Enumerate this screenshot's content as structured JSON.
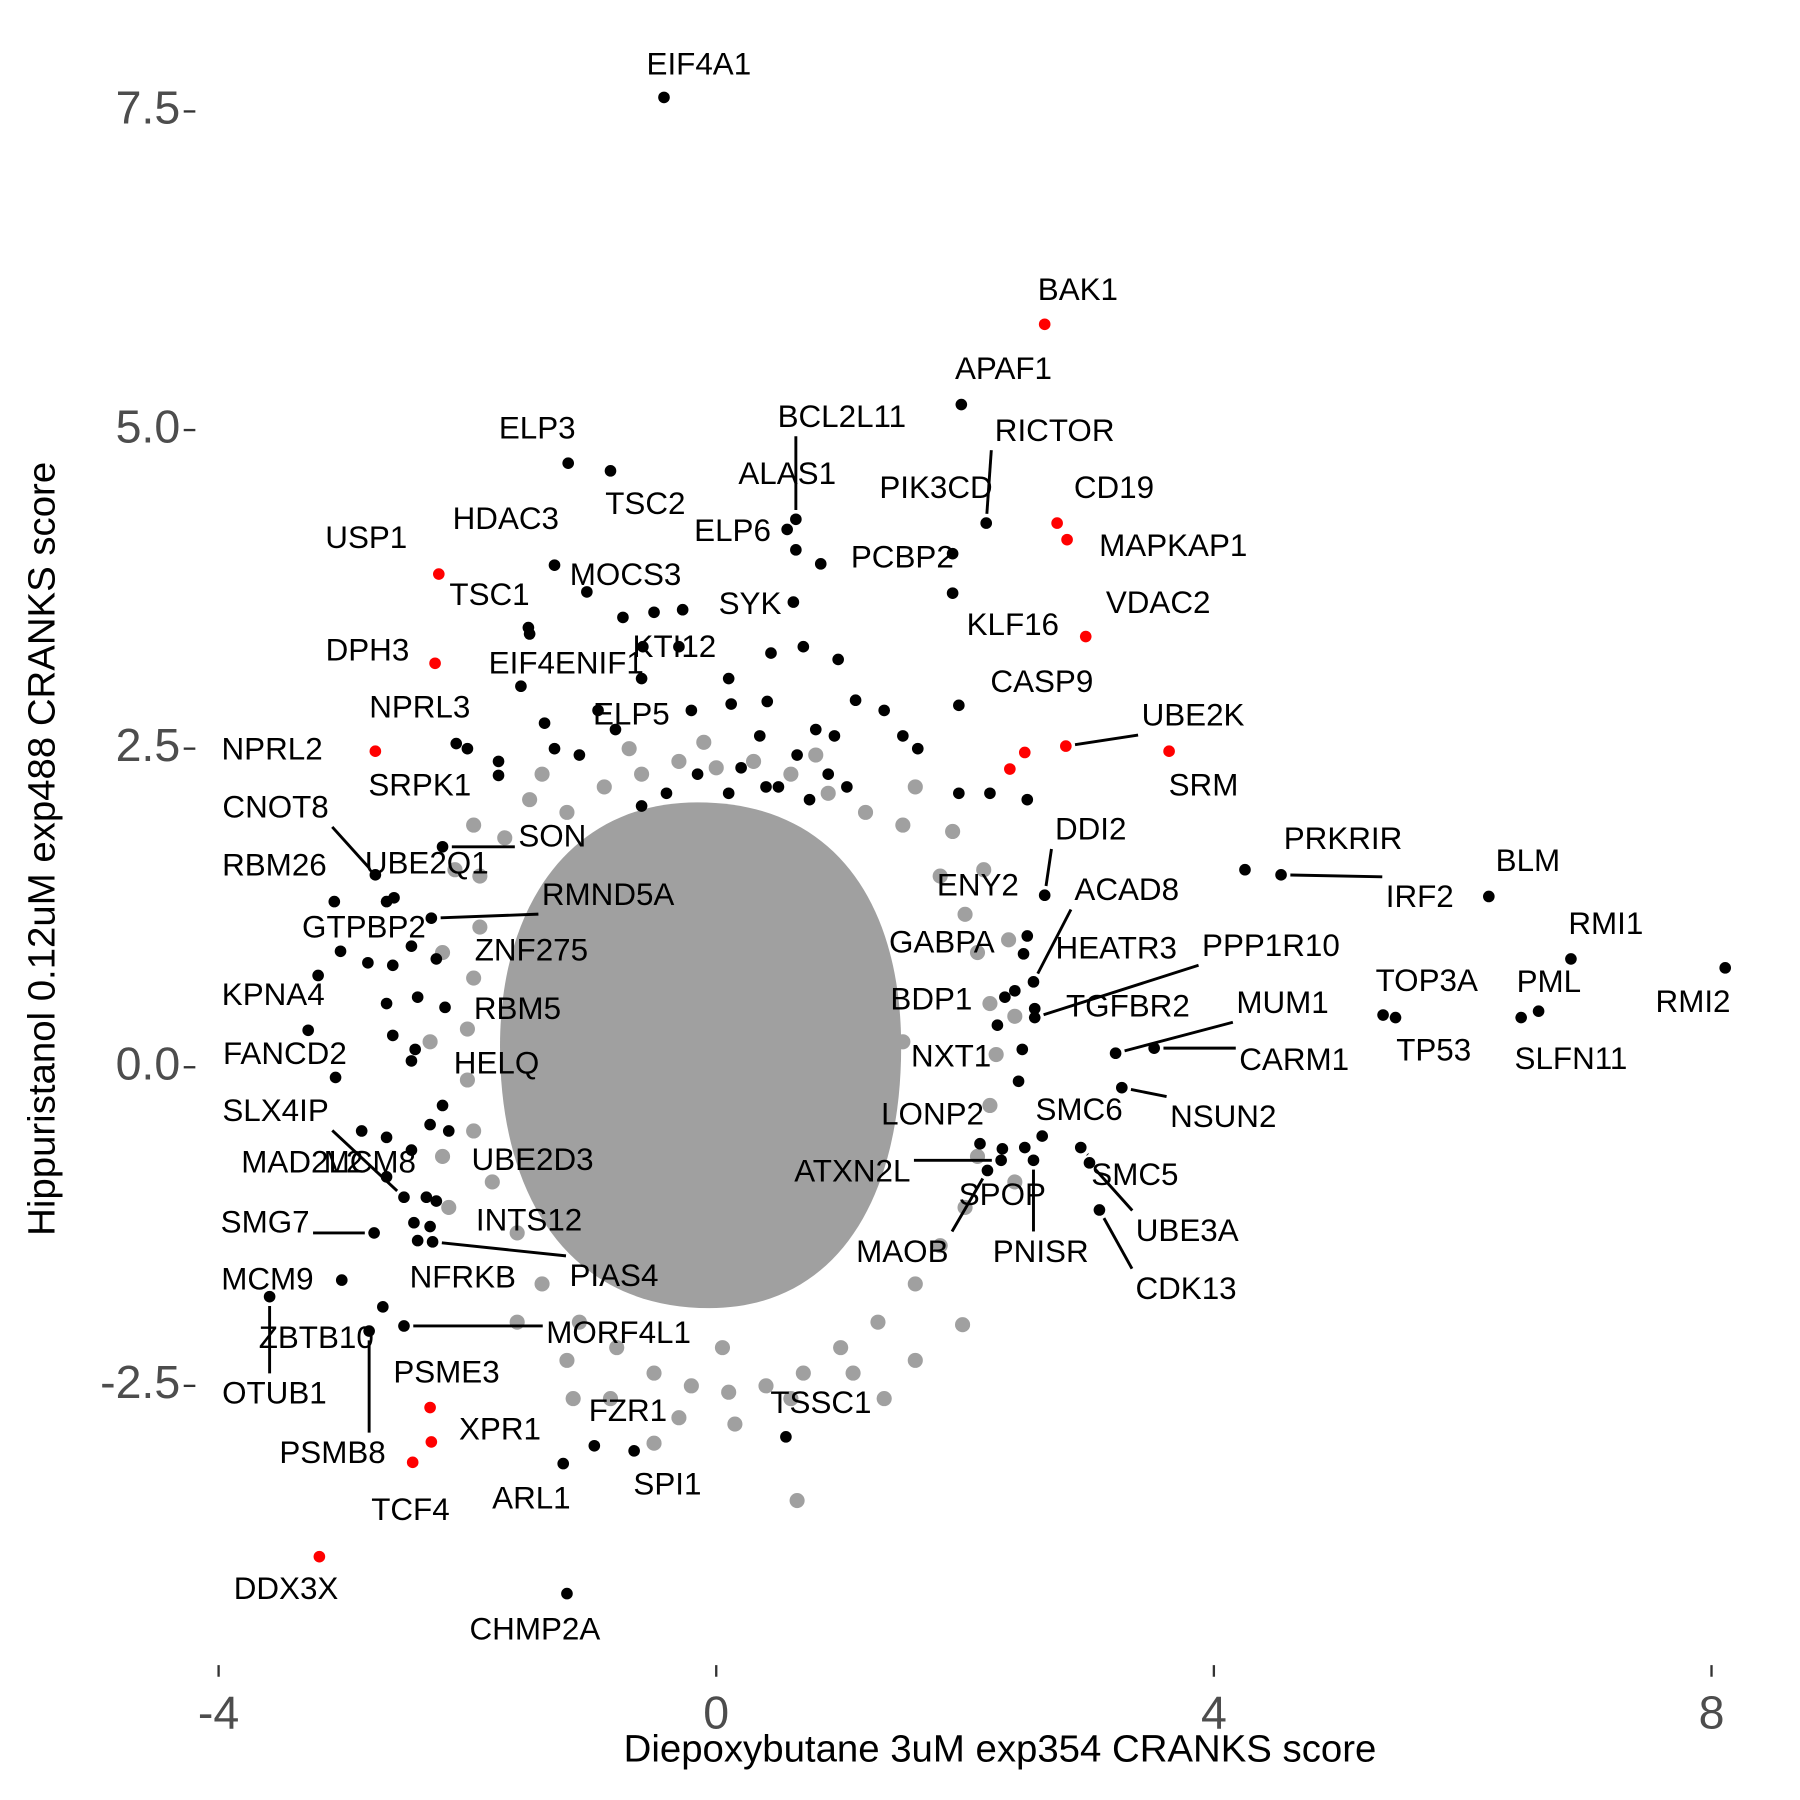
{
  "chart_data": {
    "type": "scatter",
    "x_label": "Diepoxybutane 3uM exp354 CRANKS score",
    "y_label": "Hippuristanol 0.12uM exp488 CRANKS score",
    "xlim": [
      -4.2,
      8.3
    ],
    "ylim": [
      -4.6,
      7.9
    ],
    "xticks": [
      -4,
      0,
      4,
      8
    ],
    "yticks": [
      -2.5,
      {
        "value": 0,
        "label": "0.0"
      },
      2.5,
      {
        "value": 5,
        "label": "5.0"
      },
      7.5
    ],
    "grid": false,
    "series": [
      {
        "color": "#a0a0a0",
        "x": [
          -1.9,
          -1.7,
          -1.5,
          -1.2,
          -0.9,
          -0.6,
          -0.3,
          0,
          0.3,
          0.6,
          0.9,
          1.2,
          1.5,
          1.8,
          2.0,
          2.1,
          2.2,
          2.25,
          2.2,
          2.1,
          2.0,
          1.8,
          1.6,
          1.3,
          1.0,
          0.7,
          0.4,
          0.1,
          -0.2,
          -0.5,
          -0.8,
          -1.1,
          -1.4,
          -1.6,
          -1.8,
          -1.95,
          -2.0,
          -2.0,
          -1.95,
          -1.9,
          -2.2,
          -2.3,
          -2.2,
          -2.15,
          -1.6,
          -1.2,
          -0.85,
          -0.3,
          0.15,
          0.6,
          1.1,
          1.6,
          1.98,
          2.4,
          2.4,
          2.35,
          2.15,
          1.9,
          1.6,
          0.8,
          -0.1,
          -0.7,
          -1.4,
          -1.95,
          -2.1,
          0.65,
          -1.15,
          -0.5,
          0.05,
          1.35,
          1.0,
          -1.0,
          0.5,
          -0.5,
          1.5,
          -1.5,
          0.2,
          -0.2,
          1.2,
          -1.2
        ],
        "values": [
          1.5,
          1.8,
          2.1,
          2.0,
          2.2,
          2.3,
          2.4,
          2.35,
          2.4,
          2.3,
          2.15,
          2.0,
          1.9,
          1.5,
          1.2,
          0.9,
          0.5,
          0.1,
          -0.3,
          -0.7,
          -1.1,
          -1.4,
          -1.7,
          -2.0,
          -2.2,
          -2.4,
          -2.5,
          -2.55,
          -2.5,
          -2.4,
          -2.2,
          -2.0,
          -1.7,
          -1.3,
          -0.9,
          -0.5,
          -0.1,
          0.3,
          0.7,
          1.1,
          0.9,
          0.2,
          -0.7,
          -1.1,
          -2.0,
          -2.3,
          -2.6,
          -2.75,
          -2.8,
          -2.6,
          -2.4,
          -2.3,
          -2.02,
          -0.9,
          0.4,
          1.0,
          1.55,
          1.85,
          2.2,
          2.45,
          2.55,
          2.5,
          2.3,
          1.9,
          1.55,
          -3.4,
          -2.6,
          -2.95,
          -2.2,
          -2.6,
          -1.0,
          1.0,
          0.5,
          -0.5,
          0.2,
          -0.2,
          1.6,
          -1.7,
          1.2,
          -1.2
        ]
      },
      {
        "color": "#000000",
        "x": [
          -0.42,
          1.97,
          -1.19,
          -0.85,
          0.64,
          0.57,
          2.17,
          1.9,
          -1.3,
          -1.51,
          -1.04,
          0.64,
          0.84,
          0.62,
          1.9,
          -1.57,
          -0.59,
          -0.81,
          1.95,
          -2.09,
          -1.75,
          -2.74,
          -2.2,
          -2.59,
          -3.07,
          -2.29,
          -3.02,
          -2.25,
          -3.2,
          -2.18,
          -3.28,
          -2.42,
          -2.51,
          -3.06,
          -2.65,
          -2.33,
          -2.75,
          -2.43,
          -2.4,
          -2.28,
          -3.01,
          -2.51,
          -3.59,
          -2.68,
          -2.79,
          -0.98,
          -0.66,
          -1.23,
          0.56,
          -1.2,
          2.64,
          2.5,
          2.55,
          2.47,
          2.56,
          2.56,
          2.32,
          2.26,
          2.46,
          3.21,
          3.52,
          3.26,
          2.43,
          2.62,
          2.93,
          2.29,
          2.48,
          2.18,
          2.55,
          3.0,
          3.08,
          4.25,
          4.54,
          6.21,
          6.87,
          8.11,
          5.36,
          5.46,
          6.61,
          6.47,
          -0.27,
          -0.5,
          -0.75,
          0.44,
          0.7,
          0.98,
          -0.3,
          0.1,
          -0.6,
          -0.2,
          0.12,
          0.41,
          1.12,
          1.35,
          0.8,
          0.35,
          0.95,
          1.5,
          1.62,
          0.65,
          0.2,
          -0.15,
          0.5,
          0.9,
          1.05,
          0.4,
          -0.4,
          -0.6,
          0.1,
          0.75,
          1.95,
          2.2,
          2.5,
          -1.38,
          -1.1,
          -1.3,
          -1.5,
          -0.95,
          -2.0,
          -1.75,
          -2.65,
          -2.45,
          -2.8,
          -2.6,
          -2.4,
          -2.65,
          -2.6,
          -2.45,
          -2.2,
          -2.3,
          -2.65,
          -2.85,
          -2.45,
          -2.15,
          -2.25,
          -2.3,
          2.4,
          2.12,
          2.3
        ],
        "values": [
          7.61,
          5.2,
          4.74,
          4.68,
          4.3,
          4.22,
          4.27,
          4.03,
          3.94,
          3.45,
          3.73,
          4.06,
          3.95,
          3.65,
          3.72,
          2.99,
          3.3,
          2.65,
          2.84,
          2.54,
          2.29,
          1.51,
          1.73,
          1.33,
          1.3,
          1.17,
          0.91,
          0.85,
          0.72,
          0.47,
          0.29,
          0.14,
          -1.02,
          -0.08,
          -0.86,
          -1.02,
          -1.3,
          -1.22,
          -1.36,
          -1.37,
          -1.67,
          -2.03,
          -1.8,
          -1.88,
          -2.07,
          -2.97,
          -3.01,
          -3.11,
          -2.9,
          -4.13,
          1.35,
          1.03,
          0.67,
          0.89,
          0.46,
          0.39,
          0.55,
          0.33,
          0.14,
          0.11,
          0.15,
          -0.16,
          -0.11,
          -0.54,
          -0.63,
          -0.73,
          -0.63,
          -0.81,
          -0.73,
          -0.75,
          -1.12,
          1.55,
          1.51,
          1.34,
          0.85,
          0.78,
          0.41,
          0.39,
          0.44,
          0.39,
          3.59,
          3.57,
          3.53,
          3.25,
          3.3,
          3.2,
          3.3,
          3.05,
          3.05,
          2.8,
          2.85,
          2.87,
          2.88,
          2.8,
          2.65,
          2.6,
          2.6,
          2.6,
          2.5,
          2.45,
          2.35,
          2.3,
          2.2,
          2.3,
          2.2,
          2.2,
          2.15,
          2.05,
          2.15,
          2.1,
          2.15,
          2.15,
          2.1,
          2.7,
          2.45,
          2.5,
          3.4,
          2.8,
          2.5,
          2.4,
          1.3,
          0.95,
          0.82,
          0.8,
          0.55,
          0.5,
          0.25,
          0.05,
          -0.3,
          -0.45,
          -0.55,
          -0.5,
          -0.65,
          -0.5,
          -1.05,
          -1.25,
          0.6,
          -0.6,
          -0.64
        ],
        "labels": [
          "EIF4A1",
          "APAF1",
          "ELP3",
          "TSC2",
          "BCL2L11",
          "ALAS1",
          "RICTOR",
          "PIK3CD",
          "HDAC3",
          "TSC1",
          "MOCS3",
          "ELP6",
          "PCBP2",
          "SYK",
          "KLF16",
          "EIF4ENIF1",
          "KTI12",
          "ELP5",
          "CASP9",
          "NPRL3",
          "SRPK1",
          "CNOT8",
          "SON",
          "UBE2Q1",
          "RBM26",
          "RMND5A",
          "GTPBP2",
          "ZNF275",
          "KPNA4",
          "RBM5",
          "FANCD2",
          "HELQ",
          "SLX4IP",
          "MAD2L2",
          "MCM8",
          "UBE2D3",
          "SMG7",
          "INTS12",
          "NFRKB",
          "PIAS4",
          "MCM9",
          "MORF4L1",
          "OTUB1",
          "ZBTB10",
          "PSMB8",
          "FZR1",
          "SPI1",
          "ARL1",
          "TSSC1",
          "CHMP2A",
          "DDI2",
          "ENY2",
          "ACAD8",
          "GABPA",
          "HEATR3",
          "PPP1R10",
          "BDP1",
          "TGFBR2",
          "NXT1",
          "MUM1",
          "CARM1",
          "NSUN2",
          "LONP2",
          "SMC6",
          "SMC5",
          "ATXN2L",
          "SPOP",
          "MAOB",
          "PNISR",
          "UBE3A",
          "CDK13",
          "PRKRIR",
          "IRF2",
          "BLM",
          "RMI1",
          "RMI2",
          "TOP3A",
          "TP53",
          "PML",
          "SLFN11",
          null,
          null,
          null,
          null,
          null,
          null,
          null,
          null,
          null,
          null,
          null,
          null,
          null,
          null,
          null,
          null,
          null,
          null,
          null,
          null,
          null,
          null,
          null,
          null,
          null,
          null,
          null,
          null,
          null,
          null,
          null,
          null,
          null,
          null,
          null,
          null,
          null,
          null,
          null,
          null,
          null,
          null,
          null,
          null,
          null,
          null,
          null,
          null,
          null,
          null,
          null,
          null,
          null,
          null,
          null,
          null,
          null,
          null,
          null
        ]
      },
      {
        "color": "#ff0000",
        "x": [
          2.64,
          2.74,
          2.82,
          -2.23,
          2.97,
          -2.26,
          2.81,
          -2.74,
          3.64,
          -2.3,
          -2.29,
          -2.44,
          -3.19,
          2.48,
          2.36
        ],
        "values": [
          5.83,
          4.27,
          4.14,
          3.87,
          3.38,
          3.17,
          2.52,
          2.48,
          2.48,
          -2.67,
          -2.94,
          -3.1,
          -3.84,
          2.47,
          2.34
        ],
        "labels": [
          "BAK1",
          "CD19",
          "MAPKAP1",
          "USP1",
          "VDAC2",
          "DPH3",
          "UBE2K",
          "NPRL2",
          "SRM",
          "PSME3",
          "XPR1",
          "TCF4",
          "DDX3X",
          null,
          null
        ]
      }
    ]
  }
}
